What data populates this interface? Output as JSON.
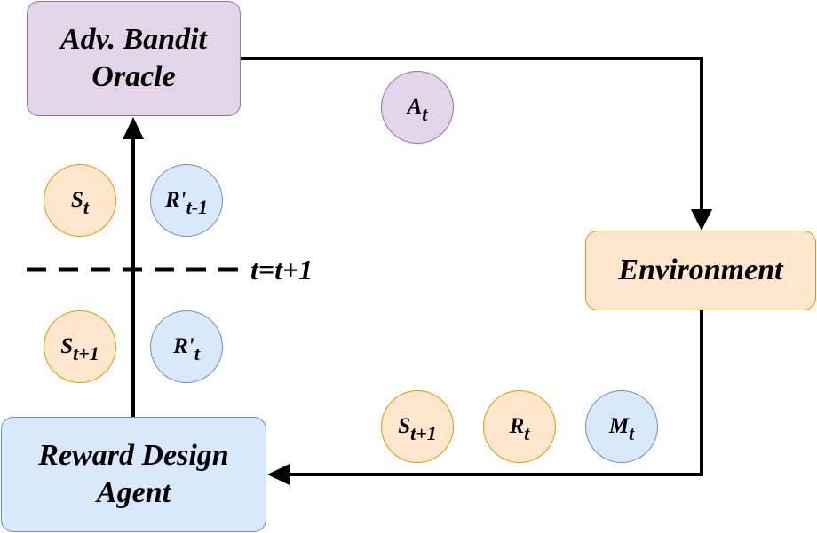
{
  "nodes": {
    "oracle_line1": "Adv. Bandit",
    "oracle_line2": "Oracle",
    "environment": "Environment",
    "agent_line1": "Reward Design",
    "agent_line2": "Agent"
  },
  "tokens": {
    "a_t": {
      "main": "A",
      "sub": "t"
    },
    "s_t": {
      "main": "S",
      "sub": "t"
    },
    "r_prev": {
      "main": "R'",
      "sub": "t-1"
    },
    "s_next_left": {
      "main": "S",
      "sub": "t+1"
    },
    "r_prime_t": {
      "main": "R'",
      "sub": "t"
    },
    "s_next_bottom": {
      "main": "S",
      "sub": "t+1"
    },
    "r_t": {
      "main": "R",
      "sub": "t"
    },
    "m_t": {
      "main": "M",
      "sub": "t"
    }
  },
  "step_label": "t=t+1",
  "colors": {
    "purple_fill": "#e1d5e7",
    "purple_stroke": "#9673a6",
    "orange_fill": "#ffe6cc",
    "orange_stroke": "#d79b00",
    "blue_fill": "#dae8fc",
    "blue_stroke": "#6c8ebf",
    "line": "#000000"
  }
}
